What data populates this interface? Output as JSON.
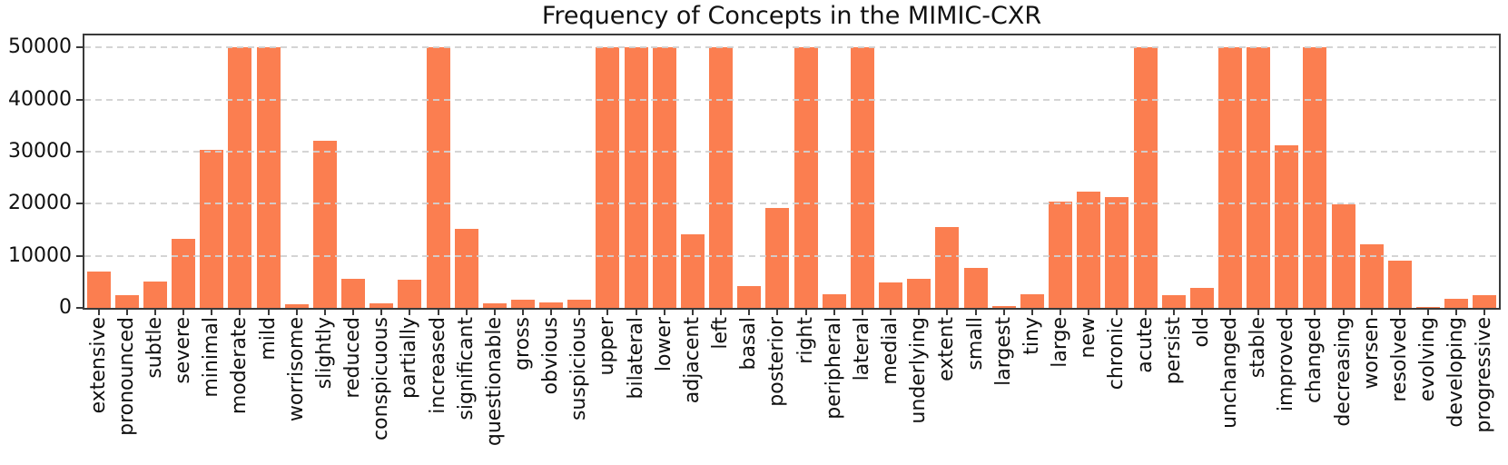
{
  "chart_data": {
    "type": "bar",
    "title": "Frequency of Concepts in the MIMIC-CXR",
    "xlabel": "",
    "ylabel": "",
    "categories": [
      "extensive",
      "pronounced",
      "subtle",
      "severe",
      "minimal",
      "moderate",
      "mild",
      "worrisome",
      "slightly",
      "reduced",
      "conspicuous",
      "partially",
      "increased",
      "significant",
      "questionable",
      "gross",
      "obvious",
      "suspicious",
      "upper",
      "bilateral",
      "lower",
      "adjacent",
      "left",
      "basal",
      "posterior",
      "right",
      "peripheral",
      "lateral",
      "medial",
      "underlying",
      "extent",
      "small",
      "largest",
      "tiny",
      "large",
      "new",
      "chronic",
      "acute",
      "persist",
      "old",
      "unchanged",
      "stable",
      "improved",
      "changed",
      "decreasing",
      "worsen",
      "resolved",
      "evolving",
      "developing",
      "progressive"
    ],
    "values": [
      6900,
      2400,
      5000,
      13300,
      30400,
      50000,
      50000,
      700,
      32000,
      5600,
      900,
      5400,
      50000,
      15100,
      800,
      1500,
      1100,
      1500,
      50000,
      50000,
      50000,
      14200,
      50000,
      4200,
      19200,
      50000,
      2600,
      50000,
      4800,
      5500,
      15600,
      7700,
      300,
      2600,
      20400,
      22300,
      21200,
      50000,
      2500,
      3900,
      50000,
      50000,
      31200,
      50000,
      19900,
      12200,
      9000,
      200,
      1800,
      2500
    ],
    "ylim": [
      0,
      52300
    ],
    "yticks": [
      0,
      10000,
      20000,
      30000,
      40000,
      50000
    ],
    "grid": "horizontal-dashed",
    "legend": "none",
    "bar_color": "#FB7E50",
    "axis_color": "#3a3a3a",
    "grid_color": "#d1d1d1",
    "text_color": "#111111"
  }
}
